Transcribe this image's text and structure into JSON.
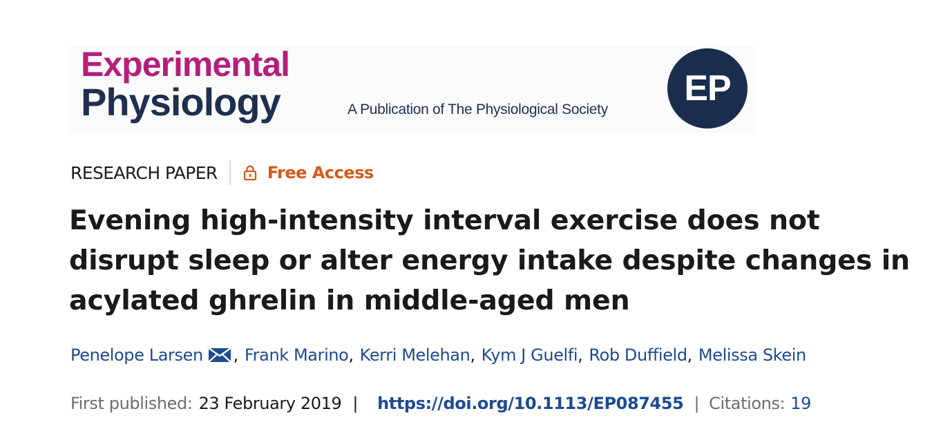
{
  "journal": {
    "name_line1": "Experimental",
    "name_line2": "Physiology",
    "tagline": "A Publication of The Physiological Society",
    "badge": "EP",
    "colors": {
      "magenta": "#b61e7b",
      "navy": "#1e2f4f"
    }
  },
  "article": {
    "type": "RESEARCH PAPER",
    "access": "Free Access",
    "access_icon": "lock-icon",
    "title": "Evening high-intensity interval exercise does not disrupt sleep or alter energy intake despite changes in acylated ghrelin in middle-aged men",
    "authors": [
      {
        "name": "Penelope Larsen",
        "corresponding": true,
        "icon": "mail-icon"
      },
      {
        "name": "Frank Marino"
      },
      {
        "name": "Kerri Melehan"
      },
      {
        "name": "Kym J Guelfi"
      },
      {
        "name": "Rob Duffield"
      },
      {
        "name": "Melissa Skein"
      }
    ],
    "first_published_label": "First published:",
    "first_published_date": "23 February 2019",
    "doi": "https://doi.org/10.1113/EP087455",
    "citations_label": "Citations:",
    "citations_count": "19",
    "colors": {
      "link": "#1d4b8f",
      "access": "#d35a1a"
    }
  }
}
